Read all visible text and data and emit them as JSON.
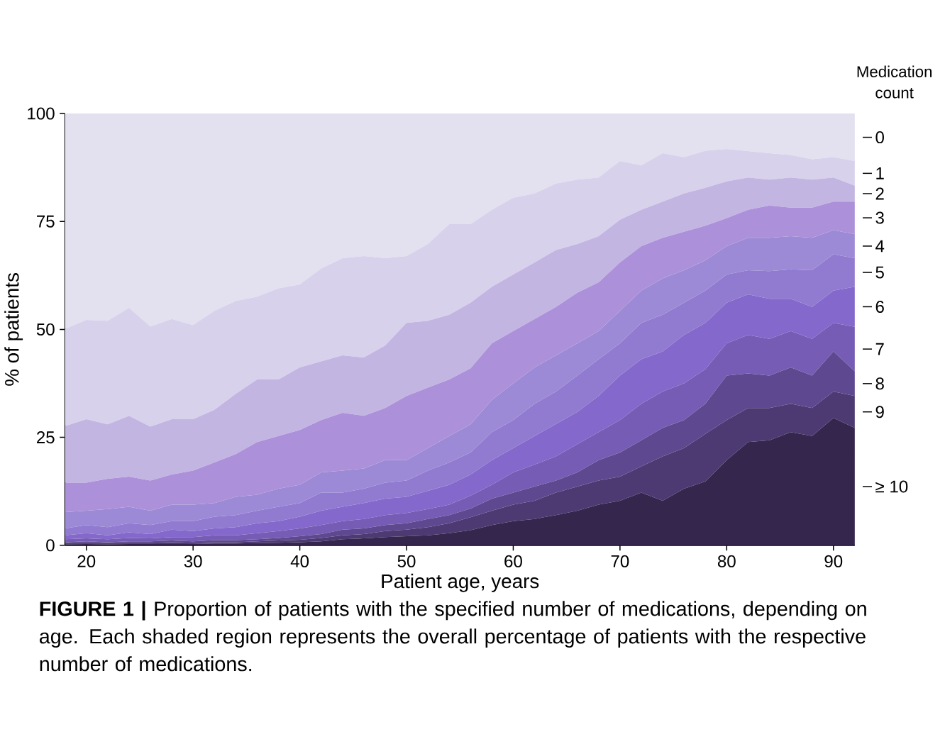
{
  "chart_data": {
    "type": "area",
    "stacked": true,
    "xlabel": "Patient age, years",
    "ylabel": "% of patients",
    "legend_title": "Medication count",
    "annotations": [
      "**FIGURE 1 |** Proportion of patients with the specified number of medications, depending on age. Each shaded region represents the overall percentage of patients with the respective number of medications."
    ],
    "xlim": [
      18,
      92
    ],
    "ylim": [
      0,
      100
    ],
    "xticks": [
      20,
      30,
      40,
      50,
      60,
      70,
      80,
      90
    ],
    "yticks": [
      0,
      25,
      50,
      75,
      100
    ],
    "x": [
      18,
      20,
      22,
      24,
      26,
      28,
      30,
      32,
      34,
      36,
      38,
      40,
      42,
      44,
      46,
      48,
      50,
      52,
      54,
      56,
      58,
      60,
      62,
      64,
      66,
      68,
      70,
      72,
      74,
      76,
      78,
      80,
      82,
      84,
      86,
      88,
      90,
      92
    ],
    "series": [
      {
        "name": "≥ 10",
        "color": "#35264d",
        "values": [
          0.2,
          0.3,
          0.2,
          0.3,
          0.3,
          0.3,
          0.3,
          0.4,
          0.4,
          0.5,
          0.6,
          0.7,
          0.9,
          1.4,
          1.6,
          1.9,
          2.1,
          2.3,
          2.8,
          3.5,
          4.7,
          5.6,
          6.1,
          7.0,
          8.0,
          9.4,
          10.3,
          12.2,
          10.3,
          13.1,
          14.8,
          19.7,
          23.9,
          24.3,
          26.2,
          25.3,
          29.5,
          27.2
        ]
      },
      {
        "name": "9",
        "color": "#4d3a73",
        "values": [
          0.3,
          0.3,
          0.3,
          0.3,
          0.3,
          0.4,
          0.3,
          0.3,
          0.3,
          0.4,
          0.5,
          0.6,
          0.8,
          0.9,
          1.0,
          1.4,
          1.5,
          1.9,
          2.3,
          3.0,
          3.3,
          3.8,
          4.2,
          5.2,
          5.6,
          5.6,
          5.6,
          6.1,
          10.3,
          9.4,
          11.0,
          9.3,
          7.9,
          7.5,
          6.6,
          6.5,
          6.1,
          7.4
        ]
      },
      {
        "name": "8",
        "color": "#5e4990",
        "values": [
          0.2,
          0.3,
          0.2,
          0.3,
          0.3,
          0.4,
          0.3,
          0.5,
          0.5,
          0.5,
          0.6,
          0.8,
          0.9,
          1.3,
          1.3,
          1.4,
          1.5,
          1.9,
          1.9,
          2.0,
          2.8,
          2.8,
          3.3,
          2.8,
          3.3,
          4.7,
          5.6,
          6.0,
          6.6,
          6.5,
          7.0,
          10.3,
          8.0,
          7.5,
          8.4,
          7.5,
          9.3,
          5.7
        ]
      },
      {
        "name": "7",
        "color": "#775cb5",
        "values": [
          0.7,
          0.7,
          0.7,
          0.8,
          0.7,
          0.8,
          1.0,
          1.1,
          1.1,
          1.4,
          1.6,
          1.8,
          2.1,
          2.0,
          2.2,
          2.3,
          2.4,
          2.3,
          2.4,
          3.0,
          3.2,
          4.7,
          5.1,
          5.6,
          6.5,
          6.5,
          7.5,
          8.5,
          8.4,
          8.5,
          8.0,
          7.5,
          8.9,
          8.5,
          8.4,
          8.5,
          6.6,
          10.3
        ]
      },
      {
        "name": "6",
        "color": "#8468cc",
        "values": [
          0.9,
          1.2,
          0.9,
          1.3,
          1.0,
          1.7,
          1.4,
          1.6,
          1.9,
          2.3,
          2.3,
          2.7,
          3.3,
          3.3,
          3.7,
          3.8,
          3.7,
          4.2,
          4.6,
          4.9,
          5.7,
          5.6,
          6.6,
          7.5,
          7.5,
          8.4,
          10.3,
          10.3,
          9.3,
          11.2,
          10.7,
          9.4,
          9.4,
          9.3,
          7.5,
          7.4,
          7.5,
          9.3
        ]
      },
      {
        "name": "5",
        "color": "#917bd1",
        "values": [
          1.6,
          1.9,
          1.9,
          2.1,
          2.1,
          2.0,
          2.3,
          2.7,
          2.8,
          2.9,
          3.3,
          3.2,
          4.2,
          3.3,
          3.3,
          3.7,
          3.8,
          4.7,
          5.2,
          5.1,
          6.5,
          6.5,
          7.5,
          7.5,
          8.4,
          8.5,
          7.5,
          8.4,
          8.5,
          7.5,
          7.5,
          6.5,
          5.6,
          6.4,
          6.8,
          8.5,
          8.4,
          6.6
        ]
      },
      {
        "name": "4",
        "color": "#9d8ad6",
        "values": [
          3.8,
          3.3,
          4.2,
          3.8,
          3.3,
          3.8,
          3.8,
          3.2,
          4.2,
          3.7,
          4.2,
          4.2,
          4.7,
          5.1,
          4.7,
          5.2,
          4.7,
          5.2,
          6.1,
          6.5,
          7.5,
          8.5,
          8.4,
          8.4,
          7.5,
          6.5,
          7.5,
          7.5,
          8.4,
          7.5,
          7.0,
          6.6,
          7.5,
          7.7,
          7.7,
          7.5,
          5.6,
          5.6
        ]
      },
      {
        "name": "3",
        "color": "#ac91da",
        "values": [
          6.8,
          6.5,
          7.0,
          7.0,
          7.0,
          7.0,
          7.9,
          9.4,
          9.9,
          12.2,
          12.2,
          12.7,
          12.1,
          13.4,
          12.2,
          12.1,
          14.9,
          14.0,
          13.1,
          13.0,
          13.1,
          12.1,
          11.2,
          11.2,
          11.7,
          11.3,
          11.2,
          10.3,
          9.4,
          8.9,
          8.0,
          6.5,
          6.5,
          7.5,
          6.6,
          7.0,
          6.6,
          7.5
        ]
      },
      {
        "name": "2",
        "color": "#c3b5e2",
        "values": [
          13.1,
          14.7,
          12.6,
          14.1,
          12.5,
          12.8,
          11.9,
          12.2,
          14.0,
          14.5,
          13.1,
          14.5,
          13.6,
          13.3,
          13.5,
          14.5,
          16.9,
          15.5,
          15.0,
          15.2,
          13.1,
          13.1,
          13.1,
          13.2,
          11.3,
          10.7,
          9.9,
          8.4,
          8.4,
          8.9,
          8.8,
          8.5,
          7.5,
          6.0,
          7.0,
          6.5,
          5.6,
          3.7
        ]
      },
      {
        "name": "1",
        "color": "#d8d1ec",
        "values": [
          22.5,
          23.0,
          24.0,
          25.0,
          23.2,
          23.2,
          21.8,
          22.9,
          21.5,
          19.2,
          21.1,
          19.2,
          21.5,
          22.5,
          23.5,
          20.2,
          15.5,
          17.8,
          21.0,
          18.2,
          17.8,
          17.8,
          16.0,
          15.4,
          14.9,
          13.6,
          13.6,
          10.3,
          11.2,
          8.4,
          8.6,
          7.5,
          6.1,
          6.1,
          5.2,
          4.7,
          4.7,
          5.7
        ]
      },
      {
        "name": "0",
        "color": "#e3e0f0",
        "values": [
          49.9,
          47.8,
          48.0,
          45.0,
          49.3,
          47.6,
          49.0,
          45.7,
          43.4,
          42.4,
          40.5,
          39.6,
          35.9,
          33.5,
          33.0,
          33.5,
          33.0,
          30.2,
          25.6,
          25.6,
          22.3,
          19.5,
          18.5,
          16.2,
          15.3,
          14.8,
          11.0,
          12.0,
          9.2,
          10.1,
          8.6,
          8.2,
          8.7,
          9.2,
          9.6,
          10.6,
          10.1,
          11.0
        ]
      }
    ]
  }
}
